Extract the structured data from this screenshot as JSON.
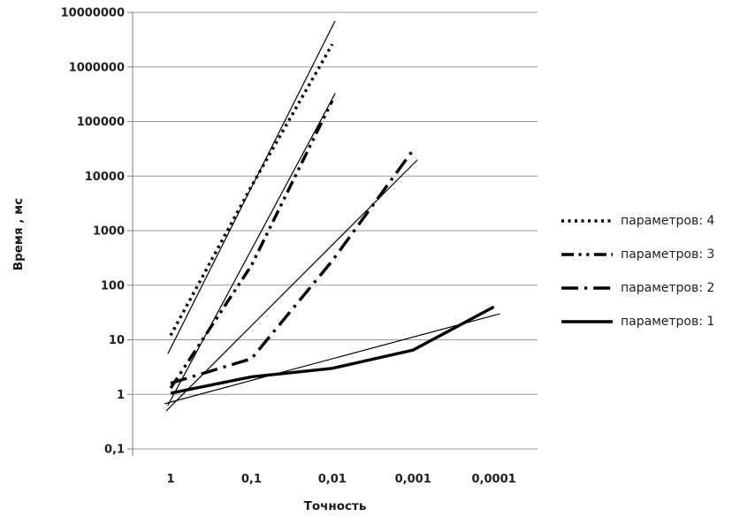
{
  "chart_data": {
    "type": "line",
    "title": "",
    "xlabel": "Точность",
    "ylabel": "Время , мс",
    "x_scale": "log (reversed, 1 → 0.0001)",
    "y_scale": "log",
    "grid": "horizontal",
    "legend_position": "right",
    "x_ticks": [
      "1",
      "0,1",
      "0,01",
      "0,001",
      "0,0001"
    ],
    "x_tick_values": [
      1,
      0.1,
      0.01,
      0.001,
      0.0001
    ],
    "y_ticks": [
      "0,1",
      "1",
      "10",
      "100",
      "1000",
      "10000",
      "100000",
      "1000000",
      "10000000"
    ],
    "y_tick_values": [
      0.1,
      1,
      10,
      100,
      1000,
      10000,
      100000,
      1000000,
      10000000
    ],
    "y_range": [
      0.1,
      10000000
    ],
    "series": [
      {
        "name": "параметров: 4",
        "style": "dotted",
        "points": [
          [
            1,
            12
          ],
          [
            0.1,
            6500
          ],
          [
            0.01,
            2600000
          ]
        ]
      },
      {
        "name": "параметров: 3",
        "style": "dash-dot-dot",
        "points": [
          [
            1,
            1.3
          ],
          [
            0.1,
            230
          ],
          [
            0.01,
            240000
          ]
        ]
      },
      {
        "name": "параметров: 2",
        "style": "long-dash-dot",
        "points": [
          [
            1,
            1.6
          ],
          [
            0.1,
            4.5
          ],
          [
            0.01,
            280
          ],
          [
            0.001,
            30000
          ]
        ]
      },
      {
        "name": "параметров: 1",
        "style": "solid",
        "points": [
          [
            1,
            1.05
          ],
          [
            0.1,
            2.1
          ],
          [
            0.01,
            3.0
          ],
          [
            0.001,
            6.5
          ],
          [
            0.0001,
            40
          ]
        ]
      }
    ],
    "trendlines": [
      {
        "for": "параметров: 4",
        "style": "thin-solid",
        "points": [
          [
            1,
            7
          ],
          [
            0.01,
            5500000
          ]
        ]
      },
      {
        "for": "параметров: 3",
        "style": "thin-solid",
        "points": [
          [
            1,
            0.78
          ],
          [
            0.01,
            260000
          ]
        ]
      },
      {
        "for": "параметров: 2",
        "style": "thin-solid",
        "points": [
          [
            1,
            0.6
          ],
          [
            0.001,
            16500
          ]
        ]
      },
      {
        "for": "параметров: 1",
        "style": "thin-solid",
        "points": [
          [
            1,
            0.72
          ],
          [
            0.0001,
            28
          ]
        ]
      }
    ],
    "colors": {
      "line": "#000000",
      "grid": "#999999",
      "axis": "#808080",
      "text": "#1f1f1f",
      "background": "#ffffff"
    }
  }
}
